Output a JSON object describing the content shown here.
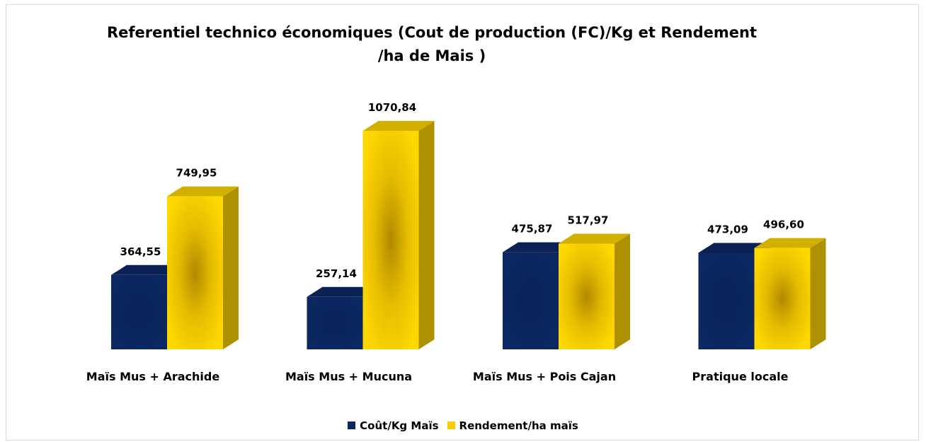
{
  "chart_data": {
    "type": "bar3d",
    "title": "Referentiel technico économiques (Cout de production (FC)/Kg et Rendement /ha de Mais )",
    "categories": [
      "Maïs Mus + Arachide",
      "Maïs Mus + Mucuna",
      "Maïs Mus + Pois Cajan",
      "Pratique locale"
    ],
    "series": [
      {
        "name": "Coût/Kg Maïs",
        "color": "#0b2862",
        "values": [
          364.55,
          257.14,
          475.87,
          473.09
        ],
        "value_labels": [
          "364,55",
          "257,14",
          "475,87",
          "473,09"
        ]
      },
      {
        "name": "Rendement/ha maïs",
        "color": "#f7cf00",
        "values": [
          749.95,
          1070.84,
          517.97,
          496.6
        ],
        "value_labels": [
          "749,95",
          "1070,84",
          "517,97",
          "496,60"
        ]
      }
    ],
    "legend": "bottom"
  }
}
